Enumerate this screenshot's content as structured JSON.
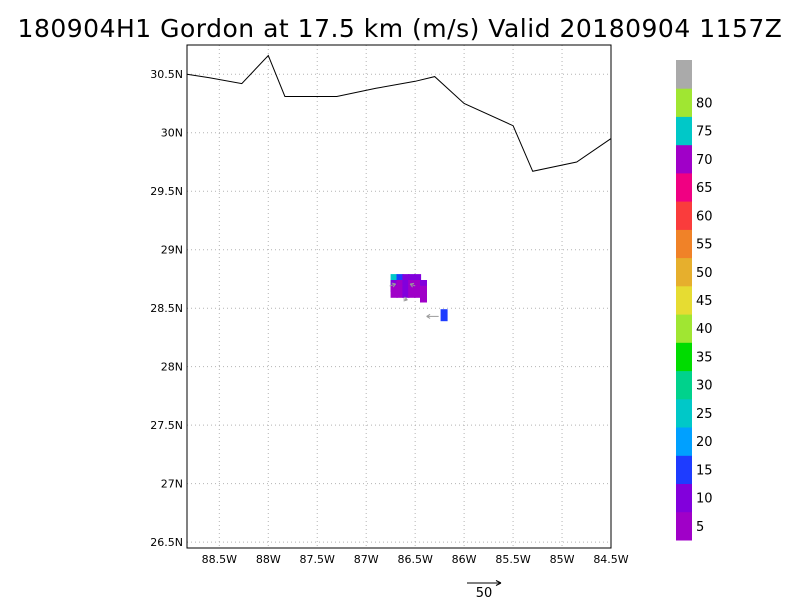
{
  "title": "180904H1 Gordon at 17.5 km (m/s) Valid 20180904 1157Z",
  "map": {
    "lon_range": [
      -88.83,
      -84.5
    ],
    "lat_range": [
      26.45,
      30.75
    ],
    "lat_ticks": [
      {
        "value": 30.5,
        "label": "30.5N"
      },
      {
        "value": 30.0,
        "label": "30N"
      },
      {
        "value": 29.5,
        "label": "29.5N"
      },
      {
        "value": 29.0,
        "label": "29N"
      },
      {
        "value": 28.5,
        "label": "28.5N"
      },
      {
        "value": 28.0,
        "label": "28N"
      },
      {
        "value": 27.5,
        "label": "27.5N"
      },
      {
        "value": 27.0,
        "label": "27N"
      },
      {
        "value": 26.5,
        "label": "26.5N"
      }
    ],
    "lon_ticks": [
      {
        "value": -88.5,
        "label": "88.5W"
      },
      {
        "value": -88.0,
        "label": "88W"
      },
      {
        "value": -87.5,
        "label": "87.5W"
      },
      {
        "value": -87.0,
        "label": "87W"
      },
      {
        "value": -86.5,
        "label": "86.5W"
      },
      {
        "value": -86.0,
        "label": "86W"
      },
      {
        "value": -85.5,
        "label": "85.5W"
      },
      {
        "value": -85.0,
        "label": "85W"
      },
      {
        "value": -84.5,
        "label": "84.5W"
      }
    ],
    "grid": true,
    "coastline": [
      [
        -88.83,
        30.5
      ],
      [
        -88.6,
        30.47
      ],
      [
        -88.27,
        30.42
      ],
      [
        -88.0,
        30.66
      ],
      [
        -87.83,
        30.31
      ],
      [
        -87.3,
        30.31
      ],
      [
        -86.9,
        30.38
      ],
      [
        -86.5,
        30.44
      ],
      [
        -86.3,
        30.48
      ],
      [
        -86.0,
        30.25
      ],
      [
        -85.5,
        30.06
      ],
      [
        -85.3,
        29.67
      ],
      [
        -84.85,
        29.75
      ],
      [
        -84.5,
        29.95
      ]
    ],
    "wind_cells": [
      {
        "lon": -86.72,
        "lat": 28.74,
        "speed": 20
      },
      {
        "lon": -86.66,
        "lat": 28.74,
        "speed": 12
      },
      {
        "lon": -86.6,
        "lat": 28.74,
        "speed": 8
      },
      {
        "lon": -86.54,
        "lat": 28.74,
        "speed": 6
      },
      {
        "lon": -86.48,
        "lat": 28.74,
        "speed": 6
      },
      {
        "lon": -86.72,
        "lat": 28.69,
        "speed": 6
      },
      {
        "lon": -86.66,
        "lat": 28.69,
        "speed": 4
      },
      {
        "lon": -86.6,
        "lat": 28.69,
        "speed": 6
      },
      {
        "lon": -86.54,
        "lat": 28.69,
        "speed": 4
      },
      {
        "lon": -86.48,
        "lat": 28.69,
        "speed": 4
      },
      {
        "lon": -86.42,
        "lat": 28.69,
        "speed": 6
      },
      {
        "lon": -86.72,
        "lat": 28.64,
        "speed": 4
      },
      {
        "lon": -86.66,
        "lat": 28.64,
        "speed": 4
      },
      {
        "lon": -86.6,
        "lat": 28.64,
        "speed": 6
      },
      {
        "lon": -86.54,
        "lat": 28.64,
        "speed": 4
      },
      {
        "lon": -86.48,
        "lat": 28.64,
        "speed": 4
      },
      {
        "lon": -86.42,
        "lat": 28.64,
        "speed": 4
      },
      {
        "lon": -86.42,
        "lat": 28.6,
        "speed": 4
      },
      {
        "lon": -86.21,
        "lat": 28.44,
        "speed": 12
      }
    ],
    "wind_vectors": [
      {
        "lon": -86.76,
        "lat": 28.69,
        "u": 0.6,
        "v": 0.2
      },
      {
        "lon": -86.5,
        "lat": 28.69,
        "u": -0.5,
        "v": 0.2
      },
      {
        "lon": -86.62,
        "lat": 28.58,
        "u": 0.4,
        "v": -0.1
      },
      {
        "lon": -86.26,
        "lat": 28.43,
        "u": -1.2,
        "v": 0.0
      }
    ]
  },
  "reference_vector": {
    "label": "50"
  },
  "colorbar": {
    "bins": [
      {
        "color": "#a000c8",
        "label": "5"
      },
      {
        "color": "#8200dc",
        "label": "10"
      },
      {
        "color": "#1e3cff",
        "label": "15"
      },
      {
        "color": "#00a0ff",
        "label": "20"
      },
      {
        "color": "#00c8c8",
        "label": "25"
      },
      {
        "color": "#00d28c",
        "label": "30"
      },
      {
        "color": "#00dc00",
        "label": "35"
      },
      {
        "color": "#a0e632",
        "label": "40"
      },
      {
        "color": "#e6dc32",
        "label": "45"
      },
      {
        "color": "#e6af2d",
        "label": "50"
      },
      {
        "color": "#f08228",
        "label": "55"
      },
      {
        "color": "#fa3c3c",
        "label": "60"
      },
      {
        "color": "#f00082",
        "label": "65"
      },
      {
        "color": "#a000c8",
        "label": "70"
      },
      {
        "color": "#00c8c8",
        "label": "75"
      },
      {
        "color": "#a0e632",
        "label": "80"
      },
      {
        "color": "#aaaaaa",
        "label": ""
      }
    ]
  }
}
